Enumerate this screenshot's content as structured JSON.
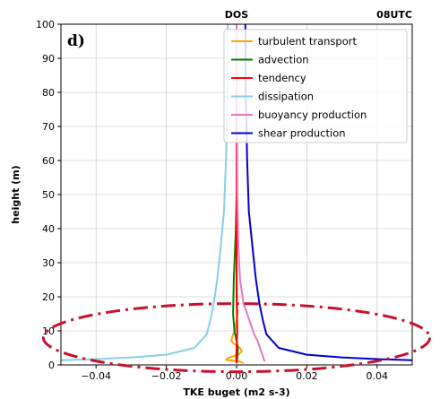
{
  "chart_data": {
    "type": "line",
    "title_left": "DOS",
    "title_right": "08UTC",
    "panel_label": "d)",
    "xlabel": "TKE buget (m2 s-3)",
    "ylabel": "height (m)",
    "xlim": [
      -0.05,
      0.05
    ],
    "ylim": [
      0,
      100
    ],
    "xticks": [
      -0.04,
      -0.02,
      0.0,
      0.02,
      0.04
    ],
    "xtick_labels": [
      "−0.04",
      "−0.02",
      "0.00",
      "0.02",
      "0.04"
    ],
    "yticks": [
      0,
      10,
      20,
      30,
      40,
      50,
      60,
      70,
      80,
      90,
      100
    ],
    "ytick_labels": [
      "0",
      "10",
      "20",
      "30",
      "40",
      "50",
      "60",
      "70",
      "80",
      "90",
      "100"
    ],
    "grid": true,
    "legend_position": "top-right",
    "series": [
      {
        "name": "turbulent transport",
        "color": "#ffa500",
        "x": [
          0.0,
          0.0,
          0.0001,
          0.0003,
          -0.0005,
          -0.001,
          -0.0015,
          -0.0005,
          0.001,
          0.0015,
          0.0005,
          -0.001,
          -0.0025,
          -0.003,
          0.001,
          0.002
        ],
        "y": [
          100,
          30,
          20,
          15,
          10,
          9,
          7,
          6,
          5,
          4,
          3,
          2.5,
          2,
          1.5,
          1,
          0.5
        ]
      },
      {
        "name": "advection",
        "color": "#008000",
        "x": [
          0.0,
          0.0,
          -0.0002,
          -0.0008,
          -0.001,
          -0.0006,
          0.0004,
          0.0002,
          0.0
        ],
        "y": [
          100,
          50,
          40,
          25,
          15,
          10,
          5,
          2,
          0.5
        ]
      },
      {
        "name": "tendency",
        "color": "#ff0000",
        "x": [
          0.0,
          0.0,
          0.0002,
          0.0,
          -0.0001,
          0.0
        ],
        "y": [
          100,
          20,
          10,
          5,
          2,
          0.5
        ]
      },
      {
        "name": "dissipation",
        "color": "#87ceeb",
        "x": [
          -0.0025,
          -0.0026,
          -0.003,
          -0.0036,
          -0.0045,
          -0.0055,
          -0.0065,
          -0.0075,
          -0.0085,
          -0.012,
          -0.02,
          -0.03,
          -0.04,
          -0.05
        ],
        "y": [
          100,
          80,
          60,
          45,
          35,
          25,
          18,
          13,
          9,
          5,
          3,
          2.2,
          1.7,
          1.4
        ]
      },
      {
        "name": "buoyancy production",
        "color": "#e377c2",
        "x": [
          0.0,
          0.0002,
          0.0005,
          0.001,
          0.002,
          0.003,
          0.004,
          0.005,
          0.006,
          0.007,
          0.008
        ],
        "y": [
          100,
          50,
          35,
          25,
          18,
          15,
          12,
          9,
          7,
          4,
          1
        ]
      },
      {
        "name": "shear production",
        "color": "#0000cd",
        "x": [
          0.0025,
          0.0026,
          0.003,
          0.0035,
          0.0045,
          0.0055,
          0.0065,
          0.0075,
          0.0085,
          0.012,
          0.02,
          0.03,
          0.04,
          0.05
        ],
        "y": [
          100,
          80,
          60,
          45,
          35,
          25,
          18,
          13,
          9,
          5,
          3,
          2.2,
          1.7,
          1.4
        ]
      }
    ],
    "annotation": {
      "shape": "dash-dot-ellipse",
      "color": "#c8102e",
      "center": [
        0.0,
        8
      ],
      "x_radius": 0.055,
      "y_radius": 10
    }
  }
}
